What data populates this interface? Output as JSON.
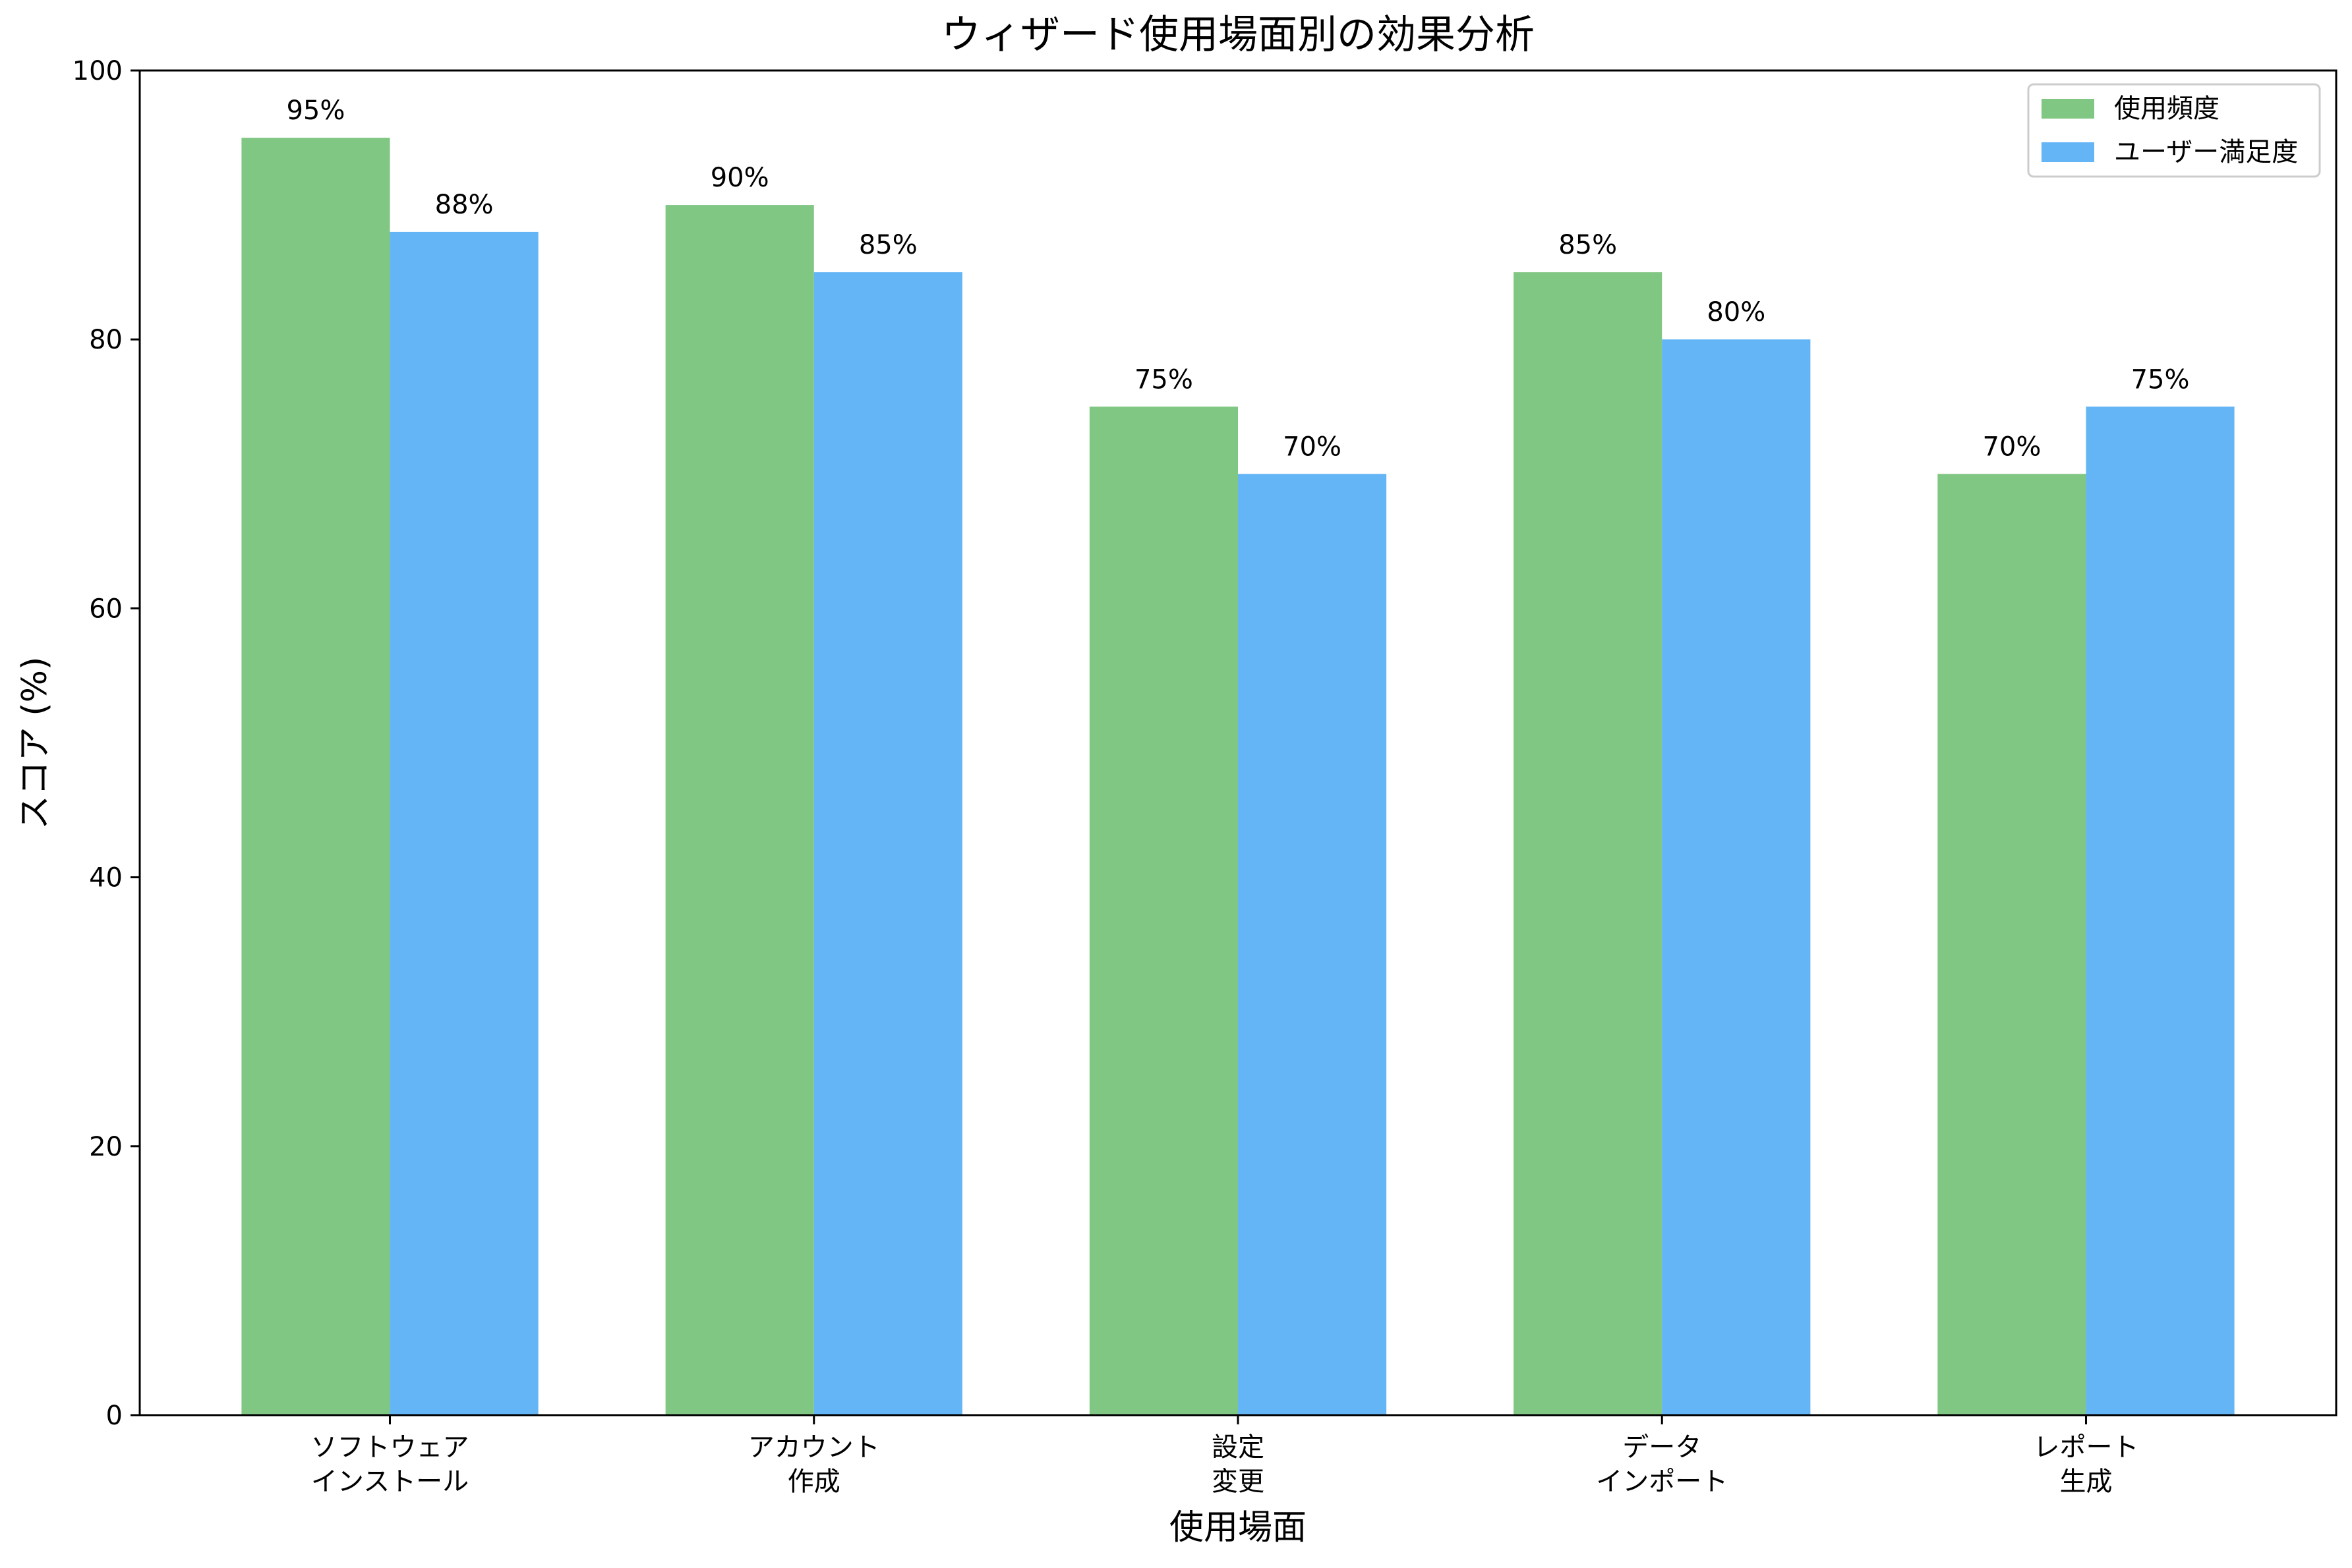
{
  "chart_data": {
    "type": "bar",
    "title": "ウィザード使用場面別の効果分析",
    "xlabel": "使用場面",
    "ylabel": "スコア (%)",
    "ylim": [
      0,
      100
    ],
    "yticks": [
      0,
      20,
      40,
      60,
      80,
      100
    ],
    "categories": [
      [
        "ソフトウェア",
        "インストール"
      ],
      [
        "アカウント",
        "作成"
      ],
      [
        "設定",
        "変更"
      ],
      [
        "データ",
        "インポート"
      ],
      [
        "レポート",
        "生成"
      ]
    ],
    "series": [
      {
        "name": "使用頻度",
        "color": "#81c784",
        "values": [
          95,
          90,
          75,
          85,
          70
        ]
      },
      {
        "name": "ユーザー満足度",
        "color": "#64b5f6",
        "values": [
          88,
          85,
          70,
          80,
          75
        ]
      }
    ],
    "value_suffix": "%",
    "grid": false,
    "legend_position": "top-right"
  }
}
